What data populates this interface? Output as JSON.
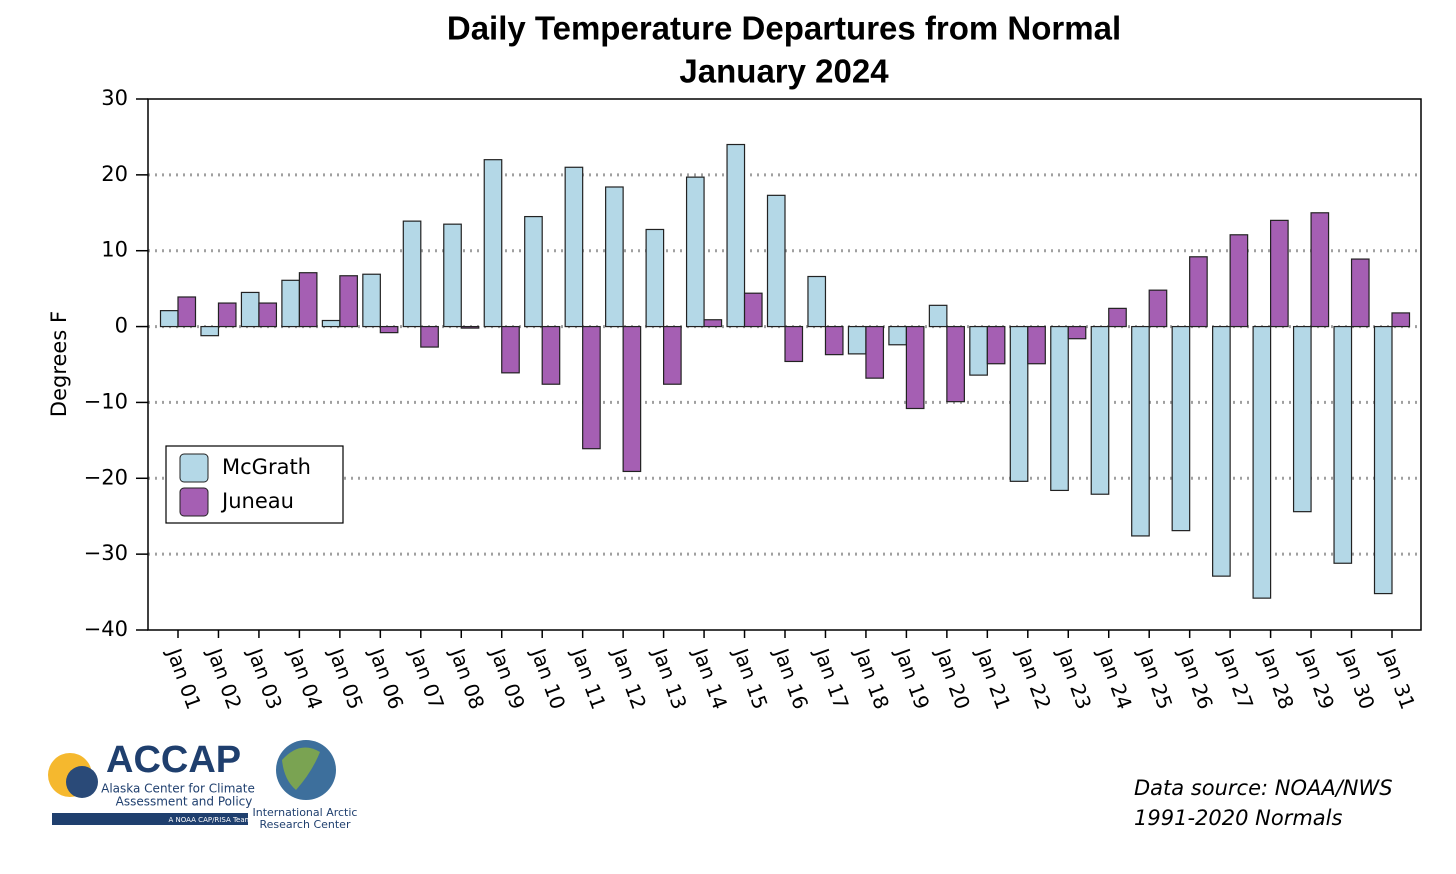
{
  "chart_data": {
    "type": "bar",
    "title": "Daily Temperature Departures from Normal",
    "subtitle": "January 2024",
    "y_label": "Degrees F",
    "categories": [
      "Jan 01",
      "Jan 02",
      "Jan 03",
      "Jan 04",
      "Jan 05",
      "Jan 06",
      "Jan 07",
      "Jan 08",
      "Jan 09",
      "Jan 10",
      "Jan 11",
      "Jan 12",
      "Jan 13",
      "Jan 14",
      "Jan 15",
      "Jan 16",
      "Jan 17",
      "Jan 18",
      "Jan 19",
      "Jan 20",
      "Jan 21",
      "Jan 22",
      "Jan 23",
      "Jan 24",
      "Jan 25",
      "Jan 26",
      "Jan 27",
      "Jan 28",
      "Jan 29",
      "Jan 30",
      "Jan 31"
    ],
    "series": [
      {
        "name": "McGrath",
        "color": "#b4d8e7",
        "values": [
          2.1,
          -1.2,
          4.5,
          6.1,
          0.8,
          6.9,
          13.9,
          13.5,
          22,
          14.5,
          21,
          18.4,
          12.8,
          19.7,
          24,
          17.3,
          6.6,
          -3.6,
          -2.4,
          2.8,
          -6.4,
          -20.4,
          -21.6,
          -22.1,
          -27.6,
          -26.9,
          -32.9,
          -35.8,
          -24.4,
          -31.2,
          -35.2
        ]
      },
      {
        "name": "Juneau",
        "color": "#a55fb3",
        "values": [
          3.9,
          3.1,
          3.1,
          7.1,
          6.7,
          -0.8,
          -2.7,
          -0.2,
          -6.1,
          -7.6,
          -16.1,
          -19.1,
          -7.6,
          0.9,
          4.4,
          -4.6,
          -3.7,
          -6.8,
          -10.8,
          -9.9,
          -4.9,
          -4.9,
          -1.6,
          2.4,
          4.8,
          9.2,
          12.1,
          14,
          15,
          8.9,
          1.8
        ]
      }
    ],
    "ylim": [
      -40,
      30
    ],
    "yticks": [
      30,
      20,
      10,
      {
        "value": 0,
        "label": "0"
      },
      {
        "value": -10,
        "label": "−10"
      },
      {
        "value": -20,
        "label": "−20"
      },
      {
        "value": -30,
        "label": "−30"
      },
      {
        "value": -40,
        "label": "−40"
      }
    ],
    "grid": true,
    "legend": "lower left",
    "source_notes": [
      "Data source:  NOAA/NWS",
      "1991-2020 Normals"
    ]
  },
  "logos": {
    "accap": [
      "ACCAP",
      "Alaska Center for Climate",
      "Assessment and Policy",
      "A NOAA CAP/RISA Team"
    ],
    "iarc": [
      "International Arctic",
      "Research Center"
    ]
  }
}
